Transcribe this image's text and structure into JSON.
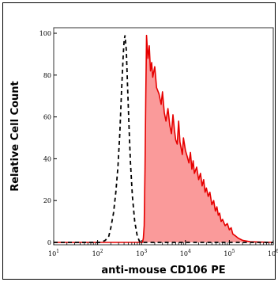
{
  "chart_data": {
    "type": "area",
    "xlabel": "anti-mouse CD106 PE",
    "ylabel": "Relative Cell Count",
    "x_scale": "log",
    "xlim": [
      10,
      1000000
    ],
    "ylim": [
      0,
      100
    ],
    "y_ticks": [
      0,
      20,
      40,
      60,
      80,
      100
    ],
    "x_tick_labels": [
      {
        "value": 10,
        "base": "10",
        "exp": "1"
      },
      {
        "value": 100,
        "base": "10",
        "exp": "2"
      },
      {
        "value": 1000,
        "base": "10",
        "exp": "3"
      },
      {
        "value": 10000,
        "base": "10",
        "exp": "4"
      },
      {
        "value": 100000,
        "base": "10",
        "exp": "5"
      },
      {
        "value": 1000000,
        "base": "10",
        "exp": "6"
      }
    ],
    "grid": false,
    "legend": "none",
    "series": [
      {
        "style": "dashed-black-line",
        "color": "#000000",
        "x": [
          10,
          120,
          150,
          180,
          200,
          230,
          260,
          290,
          320,
          350,
          380,
          400,
          420,
          450,
          480,
          520,
          560,
          620,
          700,
          800,
          900,
          1000,
          10000,
          100000,
          1000000
        ],
        "y": [
          0,
          0,
          1,
          3,
          7,
          14,
          24,
          36,
          52,
          72,
          88,
          96,
          99,
          92,
          75,
          55,
          38,
          22,
          10,
          3,
          0.5,
          0,
          0,
          0,
          0
        ]
      },
      {
        "style": "red-filled-area",
        "color": "#e60000",
        "fill": "#fa9a9a",
        "x": [
          10,
          1050,
          1100,
          1150,
          1200,
          1250,
          1300,
          1400,
          1500,
          1600,
          1700,
          1800,
          2000,
          2200,
          2500,
          2800,
          3000,
          3300,
          3600,
          4000,
          4400,
          4800,
          5200,
          5600,
          6000,
          6500,
          7000,
          7500,
          8000,
          8500,
          9000,
          10000,
          11000,
          12000,
          13000,
          14000,
          15000,
          16000,
          18000,
          20000,
          22000,
          24000,
          26000,
          28000,
          30000,
          33000,
          36000,
          40000,
          44000,
          48000,
          52000,
          56000,
          60000,
          65000,
          70000,
          80000,
          90000,
          100000,
          110000,
          120000,
          140000,
          160000,
          200000,
          300000,
          1000000
        ],
        "y": [
          0,
          0,
          2,
          8,
          35,
          70,
          99,
          88,
          94,
          82,
          86,
          79,
          84,
          74,
          71,
          66,
          72,
          62,
          58,
          64,
          56,
          52,
          61,
          54,
          49,
          47,
          58,
          48,
          45,
          42,
          50,
          44,
          41,
          38,
          43,
          35,
          39,
          33,
          36,
          30,
          33,
          27,
          30,
          24,
          26,
          22,
          24,
          18,
          20,
          15,
          17,
          13,
          14,
          10,
          11,
          8,
          9,
          6,
          7,
          4,
          3,
          2,
          1,
          0.3,
          0
        ]
      }
    ]
  }
}
